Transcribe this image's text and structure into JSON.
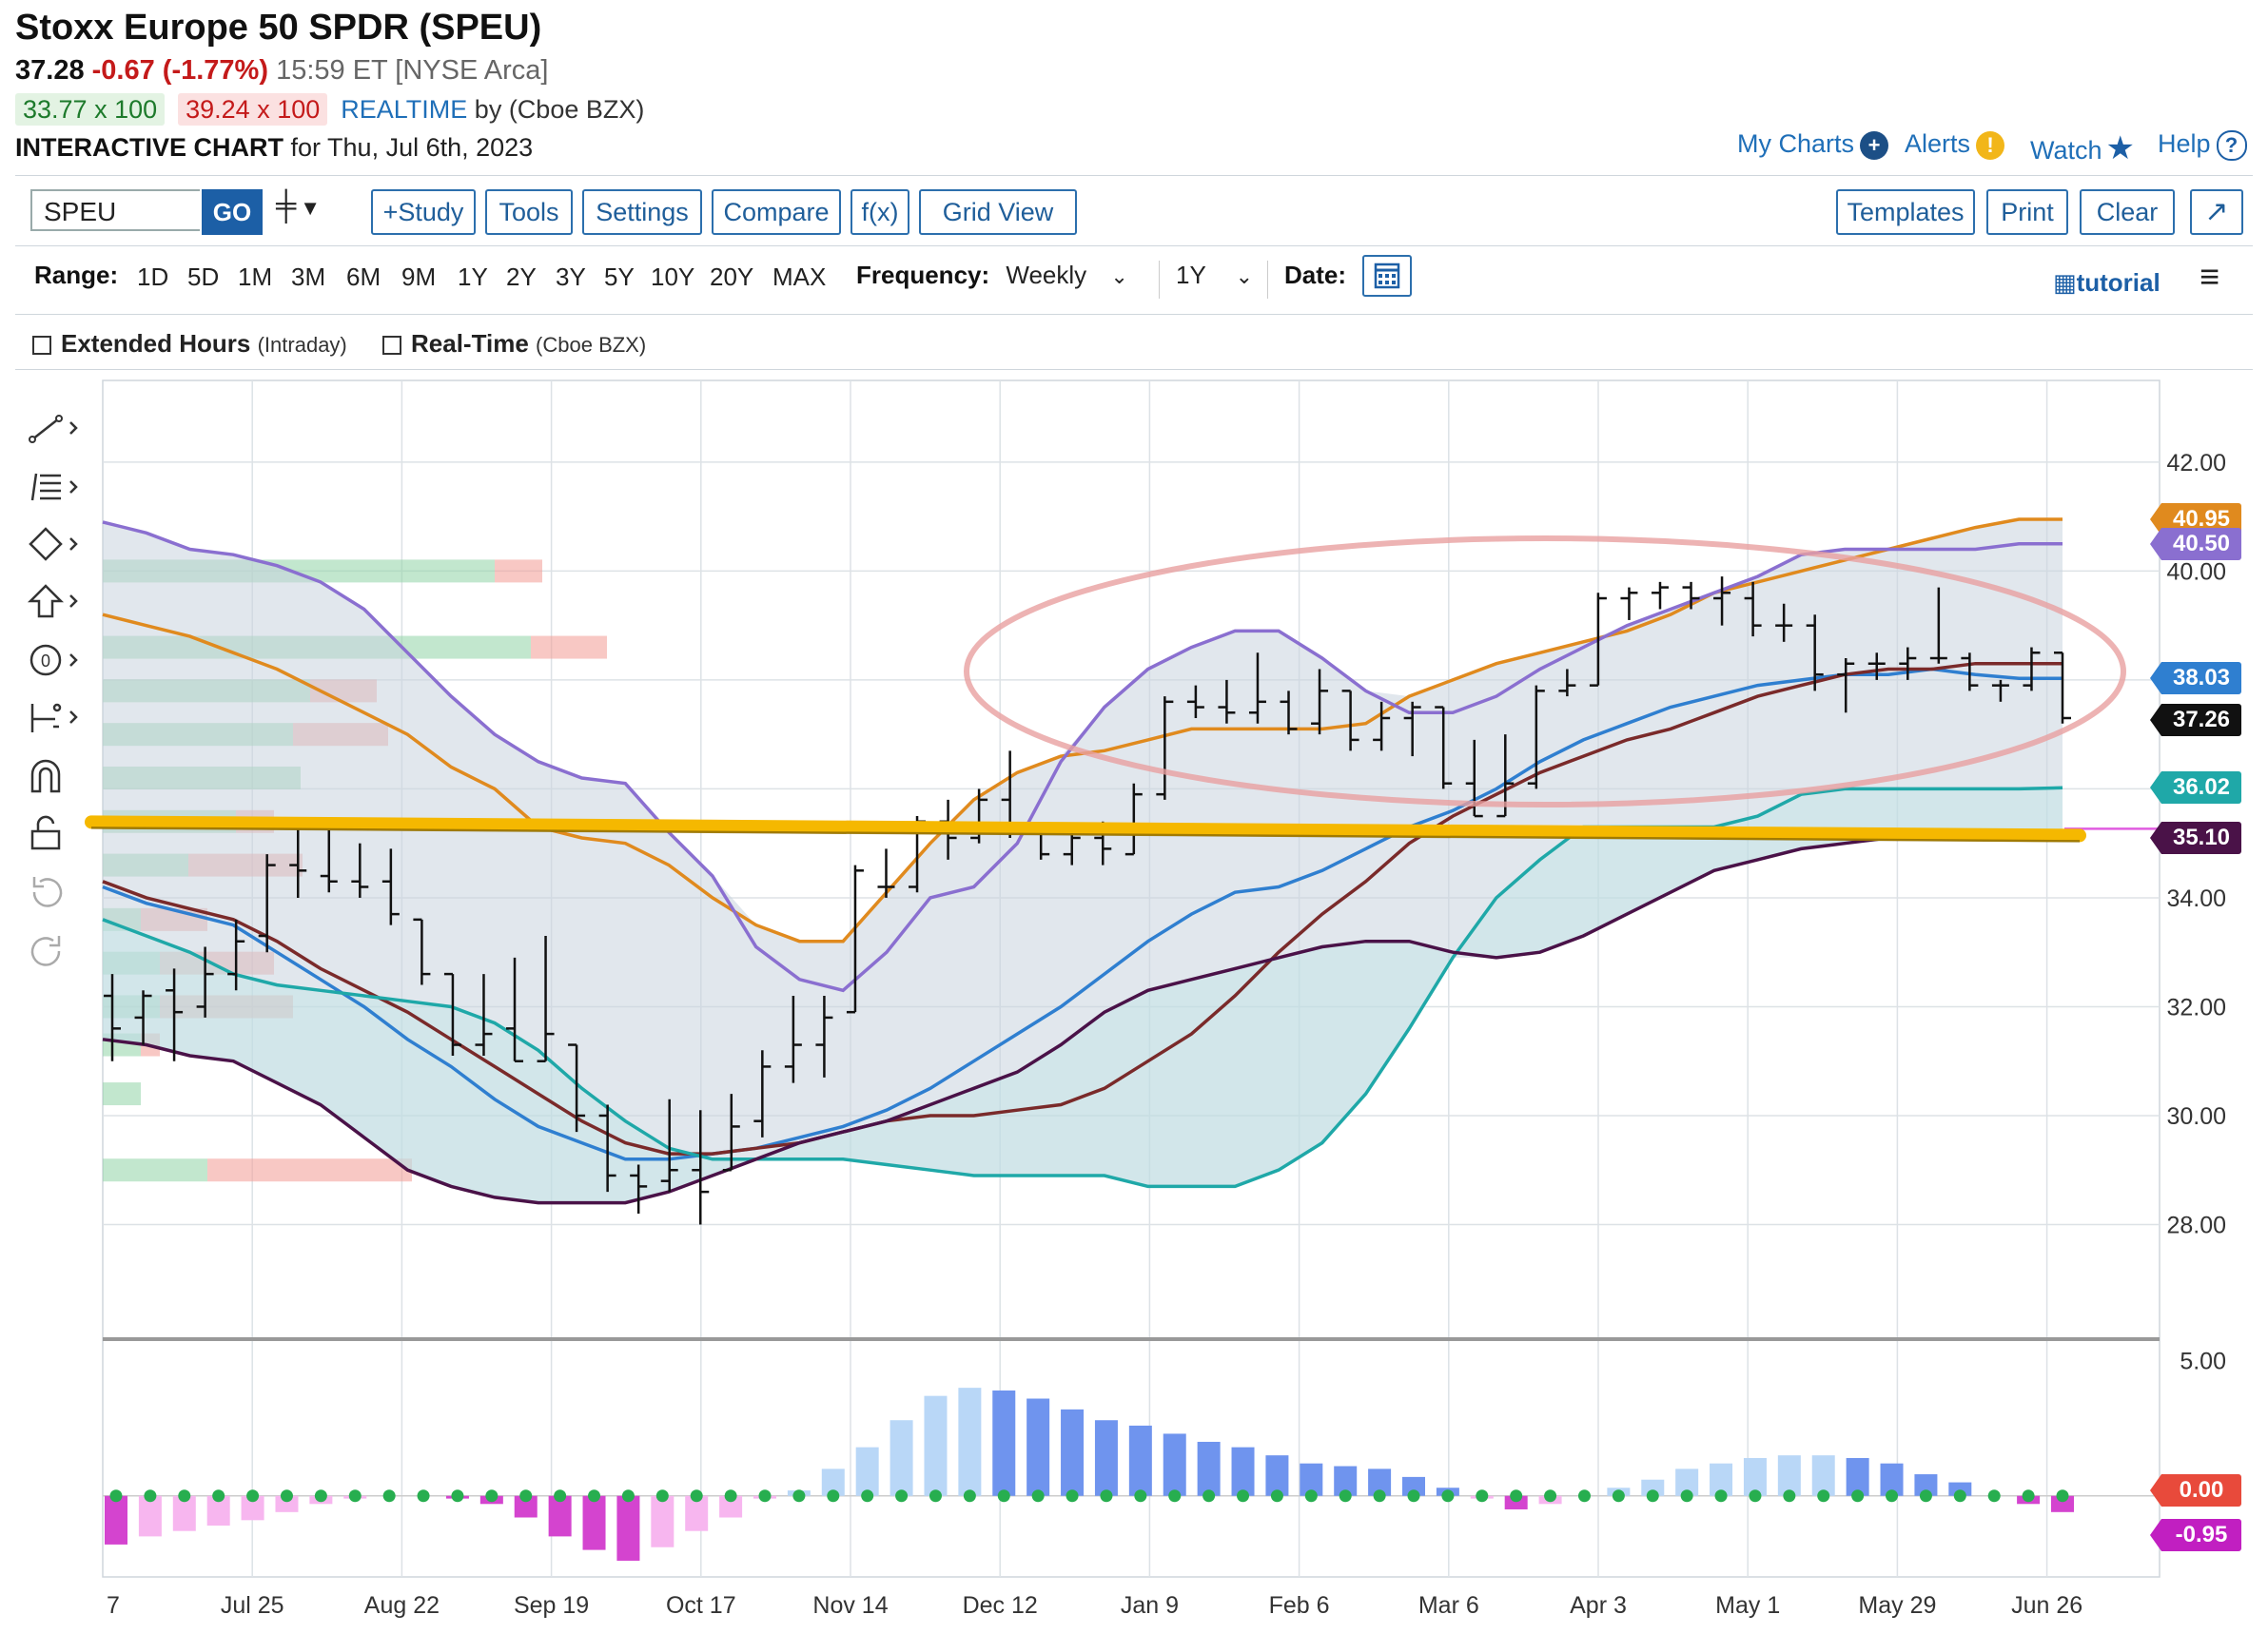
{
  "header": {
    "title": "Stoxx Europe 50 SPDR (SPEU)",
    "last": "37.28",
    "change": "-0.67 (-1.77%)",
    "time": "15:59 ET [NYSE Arca]",
    "bid": "33.77 x 100",
    "ask": "39.24 x 100",
    "realtime": "REALTIME",
    "realtime_by": "by (Cboe BZX)",
    "interactive_label": "INTERACTIVE CHART",
    "interactive_date": "for Thu, Jul 6th, 2023"
  },
  "top_links": {
    "my_charts": "My Charts",
    "alerts": "Alerts",
    "watch": "Watch",
    "help": "Help"
  },
  "toolbar": {
    "symbol_value": "SPEU",
    "go_label": "GO",
    "study": "+Study",
    "tools": "Tools",
    "settings": "Settings",
    "compare": "Compare",
    "fx": "f(x)",
    "grid_view": "Grid View",
    "templates": "Templates",
    "print": "Print",
    "clear": "Clear"
  },
  "range": {
    "label": "Range:",
    "options": [
      "1D",
      "5D",
      "1M",
      "3M",
      "6M",
      "9M",
      "1Y",
      "2Y",
      "3Y",
      "5Y",
      "10Y",
      "20Y",
      "MAX"
    ],
    "frequency_label": "Frequency:",
    "frequency_value": "Weekly",
    "period_value": "1Y",
    "date_label": "Date:",
    "tutorial": "tutorial"
  },
  "options": {
    "extended_hours": "Extended Hours",
    "extended_hours_note": "(Intraday)",
    "real_time": "Real-Time",
    "real_time_note": "(Cboe BZX)"
  },
  "colors": {
    "orange": "#e08a1e",
    "purple": "#8a6fd0",
    "blue": "#2f7fd0",
    "maroon": "#7a2a2a",
    "teal": "#1fa8a8",
    "darkpurple": "#4a1248",
    "highlight": "#f5b800",
    "hist_pos_dark": "#6f94ee",
    "hist_pos_light": "#b9d7f7",
    "hist_neg_dark": "#d444cf",
    "hist_neg_light": "#f7b6ef"
  },
  "chart_data": {
    "type": "bar",
    "description_type": "weekly OHLC bars with Ichimoku-style bands and MACD histogram",
    "x_tick_labels": [
      "7",
      "Jul 25",
      "Aug 22",
      "Sep 19",
      "Oct 17",
      "Nov 14",
      "Dec 12",
      "Jan 9",
      "Feb 6",
      "Mar 6",
      "Apr 3",
      "May 1",
      "May 29",
      "Jun 26"
    ],
    "y_tick_labels": [
      "42.00",
      "40.00",
      "38.00",
      "36.00",
      "34.00",
      "32.00",
      "30.00",
      "28.00"
    ],
    "ylim": [
      26.0,
      43.5
    ],
    "price_tags": [
      {
        "value": 40.95,
        "label": "40.95",
        "color": "#e08a1e"
      },
      {
        "value": 40.5,
        "label": "40.50",
        "color": "#8a6fd0"
      },
      {
        "value": 38.03,
        "label": "38.03",
        "color": "#2f7fd0"
      },
      {
        "value": 37.26,
        "label": "37.26",
        "color": "#111111"
      },
      {
        "value": 36.02,
        "label": "36.02",
        "color": "#1fa8a8"
      },
      {
        "value": 35.1,
        "label": "35.10",
        "color": "#4a1248"
      }
    ],
    "ohlc": [
      [
        32.2,
        32.6,
        31.0,
        31.6
      ],
      [
        31.8,
        32.3,
        31.3,
        32.2
      ],
      [
        32.3,
        32.7,
        31.0,
        31.9
      ],
      [
        32.0,
        33.1,
        31.8,
        32.6
      ],
      [
        32.6,
        33.6,
        32.3,
        33.2
      ],
      [
        33.3,
        34.8,
        33.0,
        34.6
      ],
      [
        34.6,
        35.3,
        34.0,
        34.5
      ],
      [
        34.4,
        35.4,
        34.1,
        34.3
      ],
      [
        34.3,
        35.0,
        34.0,
        34.2
      ],
      [
        34.3,
        34.9,
        33.5,
        33.7
      ],
      [
        33.6,
        33.6,
        32.4,
        32.6
      ],
      [
        32.6,
        32.6,
        31.1,
        31.3
      ],
      [
        31.3,
        32.6,
        31.1,
        31.5
      ],
      [
        31.6,
        32.9,
        31.0,
        31.0
      ],
      [
        31.0,
        33.3,
        31.0,
        31.5
      ],
      [
        31.3,
        31.3,
        29.7,
        30.0
      ],
      [
        30.0,
        30.2,
        28.6,
        28.9
      ],
      [
        28.9,
        29.1,
        28.2,
        28.7
      ],
      [
        28.8,
        30.3,
        28.6,
        29.0
      ],
      [
        29.0,
        30.1,
        28.0,
        28.6
      ],
      [
        29.0,
        30.4,
        29.0,
        29.8
      ],
      [
        29.9,
        31.2,
        29.6,
        30.9
      ],
      [
        30.9,
        32.2,
        30.6,
        31.3
      ],
      [
        31.3,
        32.2,
        30.7,
        31.8
      ],
      [
        31.9,
        34.6,
        31.9,
        34.5
      ],
      [
        34.2,
        34.9,
        34.0,
        34.2
      ],
      [
        34.2,
        35.5,
        34.1,
        35.4
      ],
      [
        35.4,
        35.8,
        34.7,
        35.1
      ],
      [
        35.1,
        36.0,
        35.0,
        35.8
      ],
      [
        35.8,
        36.7,
        35.1,
        35.3
      ],
      [
        35.3,
        35.3,
        34.7,
        34.8
      ],
      [
        34.8,
        35.3,
        34.6,
        35.1
      ],
      [
        35.1,
        35.4,
        34.6,
        34.9
      ],
      [
        34.8,
        36.1,
        34.8,
        35.9
      ],
      [
        35.9,
        37.7,
        35.8,
        37.6
      ],
      [
        37.6,
        37.9,
        37.3,
        37.5
      ],
      [
        37.5,
        38.0,
        37.2,
        37.4
      ],
      [
        37.4,
        38.5,
        37.2,
        37.6
      ],
      [
        37.6,
        37.8,
        37.0,
        37.1
      ],
      [
        37.2,
        38.2,
        37.0,
        37.8
      ],
      [
        37.8,
        37.8,
        36.7,
        36.9
      ],
      [
        36.9,
        37.6,
        36.7,
        37.3
      ],
      [
        37.3,
        37.6,
        36.6,
        37.5
      ],
      [
        37.5,
        37.5,
        36.0,
        36.1
      ],
      [
        36.1,
        36.9,
        35.5,
        35.5
      ],
      [
        35.5,
        37.0,
        35.5,
        36.1
      ],
      [
        36.1,
        37.9,
        36.0,
        37.8
      ],
      [
        37.8,
        38.2,
        37.7,
        37.9
      ],
      [
        37.9,
        39.6,
        37.9,
        39.5
      ],
      [
        39.5,
        39.7,
        39.1,
        39.6
      ],
      [
        39.6,
        39.8,
        39.3,
        39.7
      ],
      [
        39.7,
        39.8,
        39.3,
        39.5
      ],
      [
        39.5,
        39.9,
        39.0,
        39.6
      ],
      [
        39.5,
        39.8,
        38.8,
        39.0
      ],
      [
        39.0,
        39.4,
        38.7,
        39.0
      ],
      [
        39.0,
        39.2,
        37.8,
        38.1
      ],
      [
        38.1,
        38.4,
        37.4,
        38.3
      ],
      [
        38.3,
        38.5,
        38.0,
        38.3
      ],
      [
        38.3,
        38.6,
        38.0,
        38.4
      ],
      [
        38.4,
        39.7,
        38.3,
        38.4
      ],
      [
        38.4,
        38.5,
        37.8,
        37.9
      ],
      [
        37.9,
        38.0,
        37.6,
        37.9
      ],
      [
        37.9,
        38.6,
        37.8,
        38.5
      ],
      [
        38.5,
        38.5,
        37.2,
        37.3
      ]
    ],
    "series": [
      {
        "name": "",
        "key": "orange",
        "values": [
          39.2,
          39.0,
          38.8,
          38.5,
          38.2,
          37.8,
          37.4,
          37.0,
          36.4,
          36.0,
          35.3,
          35.1,
          35.0,
          34.6,
          34.0,
          33.5,
          33.2,
          33.2,
          34.1,
          35.0,
          35.8,
          36.3,
          36.6,
          36.7,
          36.9,
          37.1,
          37.1,
          37.1,
          37.1,
          37.2,
          37.7,
          38.0,
          38.3,
          38.5,
          38.7,
          38.9,
          39.2,
          39.6,
          39.8,
          40.0,
          40.2,
          40.4,
          40.6,
          40.8,
          40.95,
          40.95
        ]
      },
      {
        "name": "",
        "key": "purple",
        "values": [
          40.9,
          40.7,
          40.4,
          40.3,
          40.1,
          39.8,
          39.3,
          38.5,
          37.7,
          37.0,
          36.5,
          36.2,
          36.1,
          35.2,
          34.4,
          33.1,
          32.5,
          32.3,
          33.0,
          34.0,
          34.2,
          35.0,
          36.5,
          37.5,
          38.2,
          38.6,
          38.9,
          38.9,
          38.4,
          37.8,
          37.4,
          37.4,
          37.7,
          38.2,
          38.6,
          39.0,
          39.3,
          39.6,
          39.9,
          40.3,
          40.4,
          40.4,
          40.4,
          40.4,
          40.5,
          40.5
        ]
      },
      {
        "name": "",
        "key": "blue",
        "values": [
          34.2,
          33.9,
          33.7,
          33.5,
          33.0,
          32.5,
          32.0,
          31.4,
          30.9,
          30.3,
          29.8,
          29.5,
          29.2,
          29.2,
          29.3,
          29.4,
          29.6,
          29.8,
          30.1,
          30.5,
          31.0,
          31.5,
          32.0,
          32.6,
          33.2,
          33.7,
          34.1,
          34.2,
          34.5,
          34.9,
          35.3,
          35.6,
          36.0,
          36.5,
          36.9,
          37.2,
          37.5,
          37.7,
          37.9,
          38.0,
          38.1,
          38.1,
          38.2,
          38.1,
          38.03,
          38.03
        ]
      },
      {
        "name": "",
        "key": "maroon",
        "values": [
          34.3,
          34.0,
          33.8,
          33.6,
          33.2,
          32.7,
          32.3,
          31.9,
          31.4,
          30.9,
          30.4,
          29.9,
          29.5,
          29.3,
          29.3,
          29.4,
          29.5,
          29.7,
          29.9,
          30.0,
          30.0,
          30.1,
          30.2,
          30.5,
          31.0,
          31.5,
          32.2,
          33.0,
          33.7,
          34.3,
          35.0,
          35.5,
          35.9,
          36.3,
          36.6,
          36.9,
          37.1,
          37.4,
          37.7,
          37.9,
          38.1,
          38.2,
          38.2,
          38.3,
          38.3,
          38.3
        ]
      },
      {
        "name": "",
        "key": "teal",
        "values": [
          33.6,
          33.3,
          33.0,
          32.6,
          32.4,
          32.3,
          32.2,
          32.1,
          32.0,
          31.7,
          31.2,
          30.5,
          29.9,
          29.4,
          29.2,
          29.2,
          29.2,
          29.2,
          29.1,
          29.0,
          28.9,
          28.9,
          28.9,
          28.9,
          28.7,
          28.7,
          28.7,
          29.0,
          29.5,
          30.4,
          31.6,
          32.9,
          34.0,
          34.7,
          35.3,
          35.3,
          35.3,
          35.3,
          35.5,
          35.9,
          36.0,
          36.0,
          36.0,
          36.0,
          36.0,
          36.02
        ]
      },
      {
        "name": "",
        "key": "darkpurple",
        "values": [
          31.4,
          31.3,
          31.1,
          31.0,
          30.6,
          30.2,
          29.6,
          29.0,
          28.7,
          28.5,
          28.4,
          28.4,
          28.4,
          28.6,
          28.9,
          29.2,
          29.5,
          29.7,
          29.9,
          30.2,
          30.5,
          30.8,
          31.3,
          31.9,
          32.3,
          32.5,
          32.7,
          32.9,
          33.1,
          33.2,
          33.2,
          33.0,
          32.9,
          33.0,
          33.3,
          33.7,
          34.1,
          34.5,
          34.7,
          34.9,
          35.0,
          35.1,
          35.1,
          35.1,
          35.1,
          35.1
        ]
      }
    ],
    "highlight_line_value": 35.25,
    "macd_hist": [
      -1.8,
      -1.5,
      -1.3,
      -1.1,
      -0.9,
      -0.6,
      -0.3,
      -0.1,
      0.0,
      0.0,
      -0.1,
      -0.3,
      -0.8,
      -1.5,
      -2.0,
      -2.4,
      -1.9,
      -1.3,
      -0.8,
      -0.1,
      0.2,
      1.0,
      1.8,
      2.8,
      3.7,
      4.0,
      3.9,
      3.6,
      3.2,
      2.8,
      2.6,
      2.3,
      2.0,
      1.8,
      1.5,
      1.2,
      1.1,
      1.0,
      0.7,
      0.3,
      -0.1,
      -0.5,
      -0.3,
      0.0,
      0.3,
      0.6,
      1.0,
      1.2,
      1.4,
      1.5,
      1.5,
      1.4,
      1.2,
      0.8,
      0.5,
      0.0,
      -0.3,
      -0.6
    ],
    "macd_y_tick_labels": [
      "5.00"
    ],
    "macd_tags": [
      {
        "value": 0.0,
        "label": "0.00",
        "color": "#e84a3b"
      },
      {
        "value": -0.95,
        "label": "-0.95",
        "color": "#c11fc1"
      }
    ],
    "macd_ylim": [
      -3.0,
      5.8
    ]
  }
}
